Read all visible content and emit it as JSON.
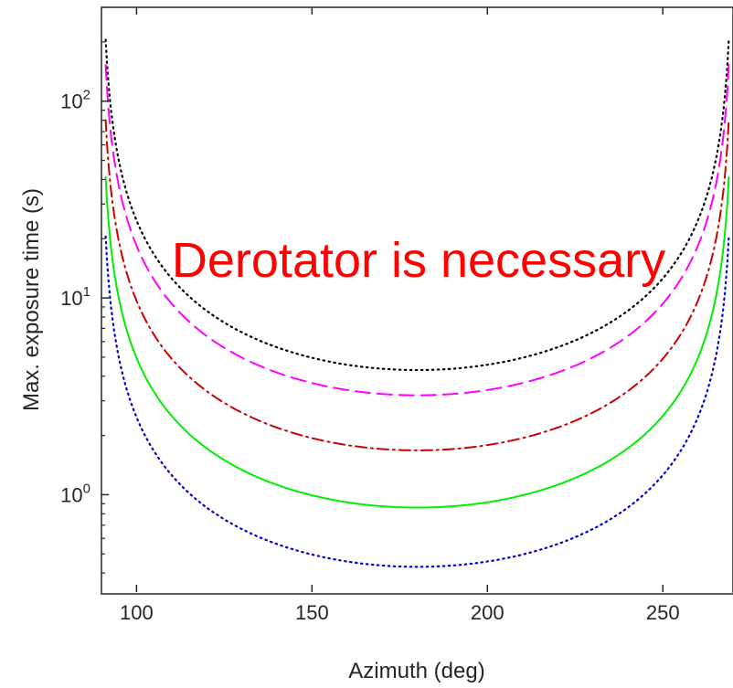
{
  "chart_data": {
    "type": "line",
    "title": "",
    "xlabel": "Azimuth (deg)",
    "ylabel": "Max. exposure time (s)",
    "xlim": [
      90,
      270
    ],
    "ylim": [
      0.32,
      300
    ],
    "yscale": "log",
    "xticks": [
      100,
      150,
      200,
      250
    ],
    "xtick_labels": [
      "100",
      "150",
      "200",
      "250"
    ],
    "yticks": [
      {
        "value": 1,
        "base": "10",
        "exp": "0"
      },
      {
        "value": 10,
        "base": "10",
        "exp": "1"
      },
      {
        "value": 100,
        "base": "10",
        "exp": "2"
      }
    ],
    "grid": false,
    "annotation": "Derotator is necessary",
    "series": [
      {
        "style": "dotted",
        "color": "#000000",
        "min_value": 4.3
      },
      {
        "style": "dashed",
        "color": "#ff00ff",
        "min_value": 3.2
      },
      {
        "style": "dashdot",
        "color": "#cc0000",
        "min_value": 1.68
      },
      {
        "style": "solid",
        "color": "#00ee00",
        "min_value": 0.86
      },
      {
        "style": "dotted",
        "color": "#0000cc",
        "min_value": 0.43
      }
    ]
  }
}
